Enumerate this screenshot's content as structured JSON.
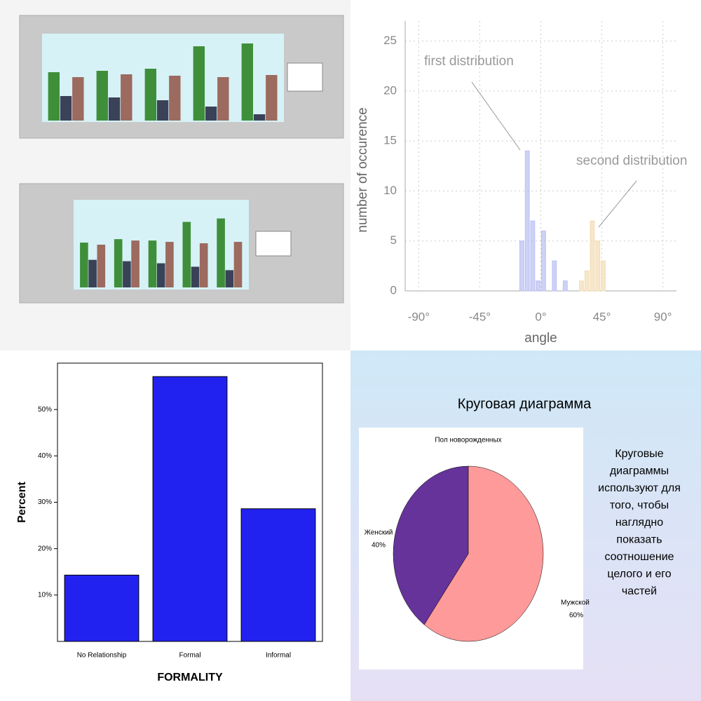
{
  "chart_data": [
    {
      "type": "bar",
      "categories": [
        null,
        null,
        null,
        null,
        null
      ],
      "ylim": [
        0,
        122
      ],
      "series": [
        {
          "color": "#3f8f3a",
          "values": [
            69,
            71,
            74,
            106,
            110
          ]
        },
        {
          "color": "#3a4258",
          "values": [
            35,
            33,
            29,
            20,
            9
          ]
        },
        {
          "color": "#9c6a5e",
          "values": [
            62,
            66,
            64,
            62,
            65
          ]
        }
      ]
    },
    {
      "type": "bar",
      "categories": [
        null,
        null,
        null,
        null,
        null
      ],
      "ylim": [
        0,
        122
      ],
      "series": [
        {
          "color": "#3f8f3a",
          "values": [
            65,
            70,
            68,
            95,
            100
          ]
        },
        {
          "color": "#3a4258",
          "values": [
            40,
            38,
            35,
            30,
            25
          ]
        },
        {
          "color": "#9c6a5e",
          "values": [
            62,
            68,
            66,
            64,
            66
          ]
        }
      ]
    },
    {
      "type": "histogram",
      "xlabel": "angle",
      "ylabel": "number of occurence",
      "xlim": [
        -100,
        100
      ],
      "ylim": [
        0,
        27
      ],
      "xticks": [
        {
          "value": -90,
          "label": "-90°"
        },
        {
          "value": -45,
          "label": "-45°"
        },
        {
          "value": 0,
          "label": "0°"
        },
        {
          "value": 45,
          "label": "45°"
        },
        {
          "value": 90,
          "label": "90°"
        }
      ],
      "yticks": [
        0,
        5,
        10,
        15,
        20,
        25
      ],
      "grid": true,
      "series": [
        {
          "color": "#b9bff2",
          "bins": [
            -16,
            -12,
            -8,
            -4,
            0,
            4,
            8,
            12,
            16,
            20
          ],
          "values": [
            5,
            14,
            7,
            1,
            6,
            0,
            3,
            0,
            1
          ]
        },
        {
          "color": "#f2dcb3",
          "bins": [
            28,
            32,
            36,
            40,
            44,
            48
          ],
          "values": [
            1,
            2,
            7,
            5,
            3
          ]
        }
      ],
      "annotations": [
        "first distribution",
        "second distribution"
      ]
    },
    {
      "type": "bar",
      "xlabel": "FORMALITY",
      "ylabel": "Percent",
      "categories": [
        "No Relationship",
        "Formal",
        "Informal"
      ],
      "values": [
        14.3,
        57.1,
        28.6
      ],
      "color": "#2222f0",
      "ylim": [
        0,
        60
      ],
      "yticks": [
        {
          "value": 10,
          "label": "10%"
        },
        {
          "value": 20,
          "label": "20%"
        },
        {
          "value": 30,
          "label": "30%"
        },
        {
          "value": 40,
          "label": "40%"
        },
        {
          "value": 50,
          "label": "50%"
        }
      ]
    },
    {
      "type": "pie",
      "title": "Круговая диаграмма",
      "subtitle": "Пол новорожденных",
      "categories": [
        "Мужской",
        "Женский"
      ],
      "values": [
        60,
        40
      ],
      "value_labels": [
        "60%",
        "40%"
      ],
      "colors": [
        "#ff9a9a",
        "#66339a"
      ],
      "note_lines": [
        "Круговые",
        "диаграммы",
        "используют для",
        "того, чтобы",
        "наглядно",
        "показать",
        "соотношение",
        "целого и его",
        "частей"
      ]
    }
  ]
}
